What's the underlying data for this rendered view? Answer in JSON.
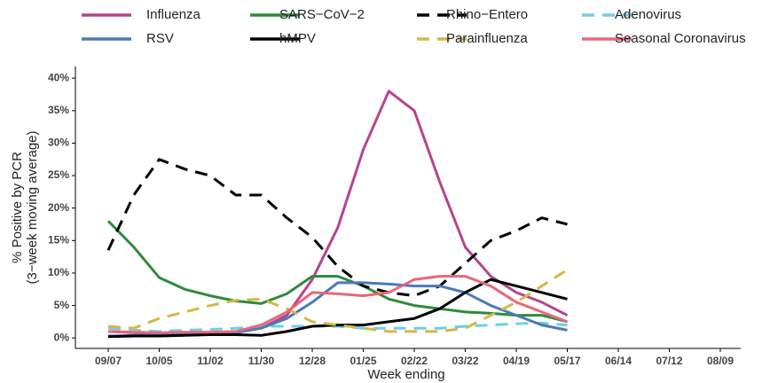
{
  "chart_data": {
    "type": "line",
    "ylabel": [
      "% Positive by PCR",
      "(3−week moving average)"
    ],
    "xlabel": "Week ending",
    "categories": [
      "09/07",
      null,
      "10/05",
      null,
      "11/02",
      null,
      "11/30",
      null,
      "12/28",
      null,
      "01/25",
      null,
      "02/22",
      null,
      "03/22",
      null,
      "04/19",
      null,
      "05/17",
      null,
      "06/14",
      null,
      "07/12",
      null,
      "08/09"
    ],
    "ylim": [
      -1.2,
      41.8
    ],
    "yticks": [
      {
        "value": 0,
        "label": "0%"
      },
      {
        "value": 5,
        "label": "5%"
      },
      {
        "value": 10,
        "label": "10%"
      },
      {
        "value": 15,
        "label": "15%"
      },
      {
        "value": 20,
        "label": "20%"
      },
      {
        "value": 25,
        "label": "25%"
      },
      {
        "value": 30,
        "label": "30%"
      },
      {
        "value": 35,
        "label": "35%"
      },
      {
        "value": 40,
        "label": "40%"
      }
    ],
    "series": [
      {
        "name": "Influenza",
        "color": "#b5458c",
        "dash": false,
        "values": [
          1,
          0.8,
          0.7,
          0.8,
          0.8,
          0.9,
          1.5,
          3.5,
          9,
          17,
          29,
          38,
          35,
          24,
          14,
          9.5,
          7,
          5.5,
          3.5,
          null,
          null,
          null,
          null,
          null,
          null
        ]
      },
      {
        "name": "SARS−CoV−2",
        "color": "#2e8b3a",
        "dash": false,
        "values": [
          18,
          14,
          9.3,
          7.5,
          6.5,
          5.7,
          5.3,
          6.8,
          9.5,
          9.5,
          8,
          6,
          5,
          4.5,
          4,
          3.8,
          3.5,
          3.5,
          2.5,
          null,
          null,
          null,
          null,
          null,
          null
        ]
      },
      {
        "name": "Rhino−Entero",
        "color": "#000000",
        "dash": true,
        "values": [
          13.5,
          22,
          27.5,
          26,
          25,
          22,
          22,
          18.5,
          15.5,
          11,
          8,
          7,
          6.5,
          8,
          11.5,
          15,
          16.5,
          18.5,
          17.5,
          null,
          null,
          null,
          null,
          null,
          null
        ]
      },
      {
        "name": "Adenovirus",
        "color": "#6ccfe8",
        "dash": true,
        "values": [
          1.5,
          1.2,
          1.0,
          1.2,
          1.3,
          1.5,
          1.8,
          1.8,
          1.8,
          1.8,
          1.5,
          1.5,
          1.5,
          1.5,
          1.8,
          2.0,
          2.2,
          2.3,
          2.0,
          null,
          null,
          null,
          null,
          null,
          null
        ]
      },
      {
        "name": "RSV",
        "color": "#4a7ab5",
        "dash": false,
        "values": [
          0.3,
          0.4,
          0.5,
          0.5,
          0.6,
          0.8,
          1.5,
          3,
          5.5,
          8.5,
          8.5,
          8.3,
          8,
          8,
          7,
          5,
          3.5,
          2,
          1.2,
          null,
          null,
          null,
          null,
          null,
          null
        ]
      },
      {
        "name": "hMPV",
        "color": "#000000",
        "dash": false,
        "values": [
          0.2,
          0.3,
          0.3,
          0.4,
          0.5,
          0.5,
          0.4,
          1,
          1.8,
          2,
          2,
          2.5,
          3,
          4.5,
          7,
          9,
          8,
          7,
          6,
          null,
          null,
          null,
          null,
          null,
          null
        ]
      },
      {
        "name": "Parainfluenza",
        "color": "#d4b84a",
        "dash": true,
        "values": [
          1.8,
          1.5,
          3,
          4,
          5,
          5.8,
          6,
          4.5,
          2.5,
          2,
          1.5,
          1,
          1,
          1,
          1.5,
          3.5,
          5.5,
          8,
          10.5,
          null,
          null,
          null,
          null,
          null,
          null
        ]
      },
      {
        "name": "Seasonal Coronavirus",
        "color": "#e8677a",
        "dash": false,
        "values": [
          1,
          0.9,
          0.8,
          0.9,
          0.9,
          1.0,
          2,
          4,
          7,
          6.8,
          6.5,
          7,
          9,
          9.5,
          9.5,
          8,
          5.5,
          4,
          2.5,
          null,
          null,
          null,
          null,
          null,
          null
        ]
      }
    ]
  }
}
